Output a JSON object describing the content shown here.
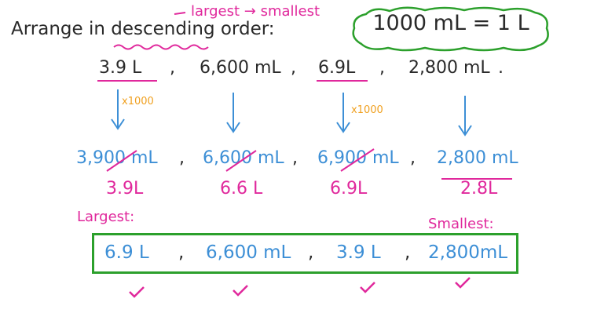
{
  "heading": {
    "prefix": "Arrange in ",
    "emphasis": "descending",
    "suffix": " order:"
  },
  "note": "largest → smallest",
  "conversion": "1000 mL  =  1 L",
  "given": {
    "items": [
      "3.9  L",
      "6,600 mL",
      "6.9L",
      "2,800 mL"
    ],
    "separators": [
      ",",
      ",",
      ","
    ],
    "end": "."
  },
  "multipliers": [
    "x1000",
    "x1000"
  ],
  "converted_ml": {
    "items": [
      "3,900 mL",
      "6,600 mL",
      "6,900 mL",
      "2,800 mL"
    ],
    "separators": [
      ",",
      ",",
      ","
    ]
  },
  "converted_l": [
    "3.9L",
    "6.6 L",
    "6.9L",
    "2.8L"
  ],
  "labels": {
    "largest": "Largest:",
    "smallest": "Smallest:"
  },
  "answer": {
    "items": [
      "6.9 L",
      "6,600 mL",
      "3.9 L",
      "2,800mL"
    ],
    "separators": [
      ",",
      ",",
      ","
    ]
  },
  "colors": {
    "ink": "#2a2a2a",
    "blue": "#3d8fd6",
    "pink": "#e0289c",
    "orange": "#f0a020",
    "green": "#2ca02c"
  },
  "icons": [
    "down-arrow-icon",
    "checkmark-icon",
    "cloud-outline",
    "strike-line"
  ]
}
